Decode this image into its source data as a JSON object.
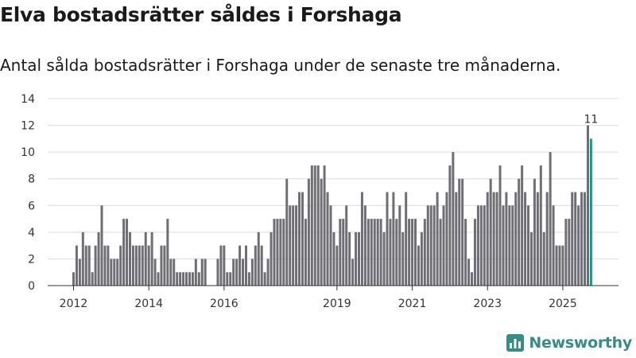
{
  "header": {
    "title": "Elva bostadsrätter såldes i Forshaga",
    "subtitle": "Antal sålda bostadsrätter i Forshaga under de senaste tre månaderna."
  },
  "brand": {
    "name": "Newsworthy"
  },
  "colors": {
    "bar": "#6f6e74",
    "highlight": "#1f968b",
    "grid": "#dcdcdc",
    "axis": "#333333",
    "brand": "#3a8b86"
  },
  "chart_data": {
    "type": "bar",
    "title": "Elva bostadsrätter såldes i Forshaga",
    "subtitle": "Antal sålda bostadsrätter i Forshaga under de senaste tre månaderna.",
    "xlabel": "",
    "ylabel": "",
    "ylim": [
      0,
      14
    ],
    "yticks": [
      0,
      2,
      4,
      6,
      8,
      10,
      12,
      14
    ],
    "grid": true,
    "x_start": "2012-01",
    "x_step": "month",
    "xticks": [
      {
        "label": "2012",
        "index": 0
      },
      {
        "label": "2014",
        "index": 24
      },
      {
        "label": "2016",
        "index": 48
      },
      {
        "label": "2019",
        "index": 84
      },
      {
        "label": "2021",
        "index": 108
      },
      {
        "label": "2023",
        "index": 132
      },
      {
        "label": "2025",
        "index": 156
      }
    ],
    "values": [
      1,
      3,
      2,
      4,
      3,
      3,
      1,
      3,
      4,
      6,
      3,
      3,
      2,
      2,
      2,
      3,
      5,
      5,
      4,
      3,
      3,
      3,
      3,
      4,
      3,
      4,
      2,
      1,
      3,
      3,
      5,
      2,
      2,
      1,
      1,
      1,
      1,
      1,
      1,
      2,
      1,
      2,
      2,
      0,
      0,
      0,
      2,
      3,
      3,
      1,
      1,
      2,
      2,
      3,
      2,
      3,
      1,
      2,
      3,
      4,
      3,
      1,
      2,
      4,
      5,
      5,
      5,
      5,
      8,
      6,
      6,
      6,
      7,
      7,
      5,
      8,
      9,
      9,
      9,
      8,
      9,
      7,
      6,
      4,
      3,
      5,
      5,
      6,
      4,
      2,
      4,
      4,
      7,
      6,
      5,
      5,
      5,
      5,
      5,
      4,
      7,
      5,
      7,
      5,
      6,
      4,
      7,
      5,
      5,
      5,
      3,
      4,
      5,
      6,
      6,
      6,
      7,
      5,
      6,
      7,
      9,
      10,
      7,
      8,
      8,
      5,
      2,
      1,
      5,
      6,
      6,
      6,
      7,
      8,
      7,
      7,
      9,
      6,
      7,
      6,
      6,
      7,
      8,
      9,
      7,
      6,
      4,
      8,
      7,
      9,
      4,
      7,
      10,
      6,
      3,
      3,
      3,
      5,
      5,
      7,
      7,
      6,
      7,
      7,
      12,
      11
    ],
    "highlight_index": 165,
    "annotations": [
      {
        "index": 165,
        "text": "11"
      }
    ]
  }
}
